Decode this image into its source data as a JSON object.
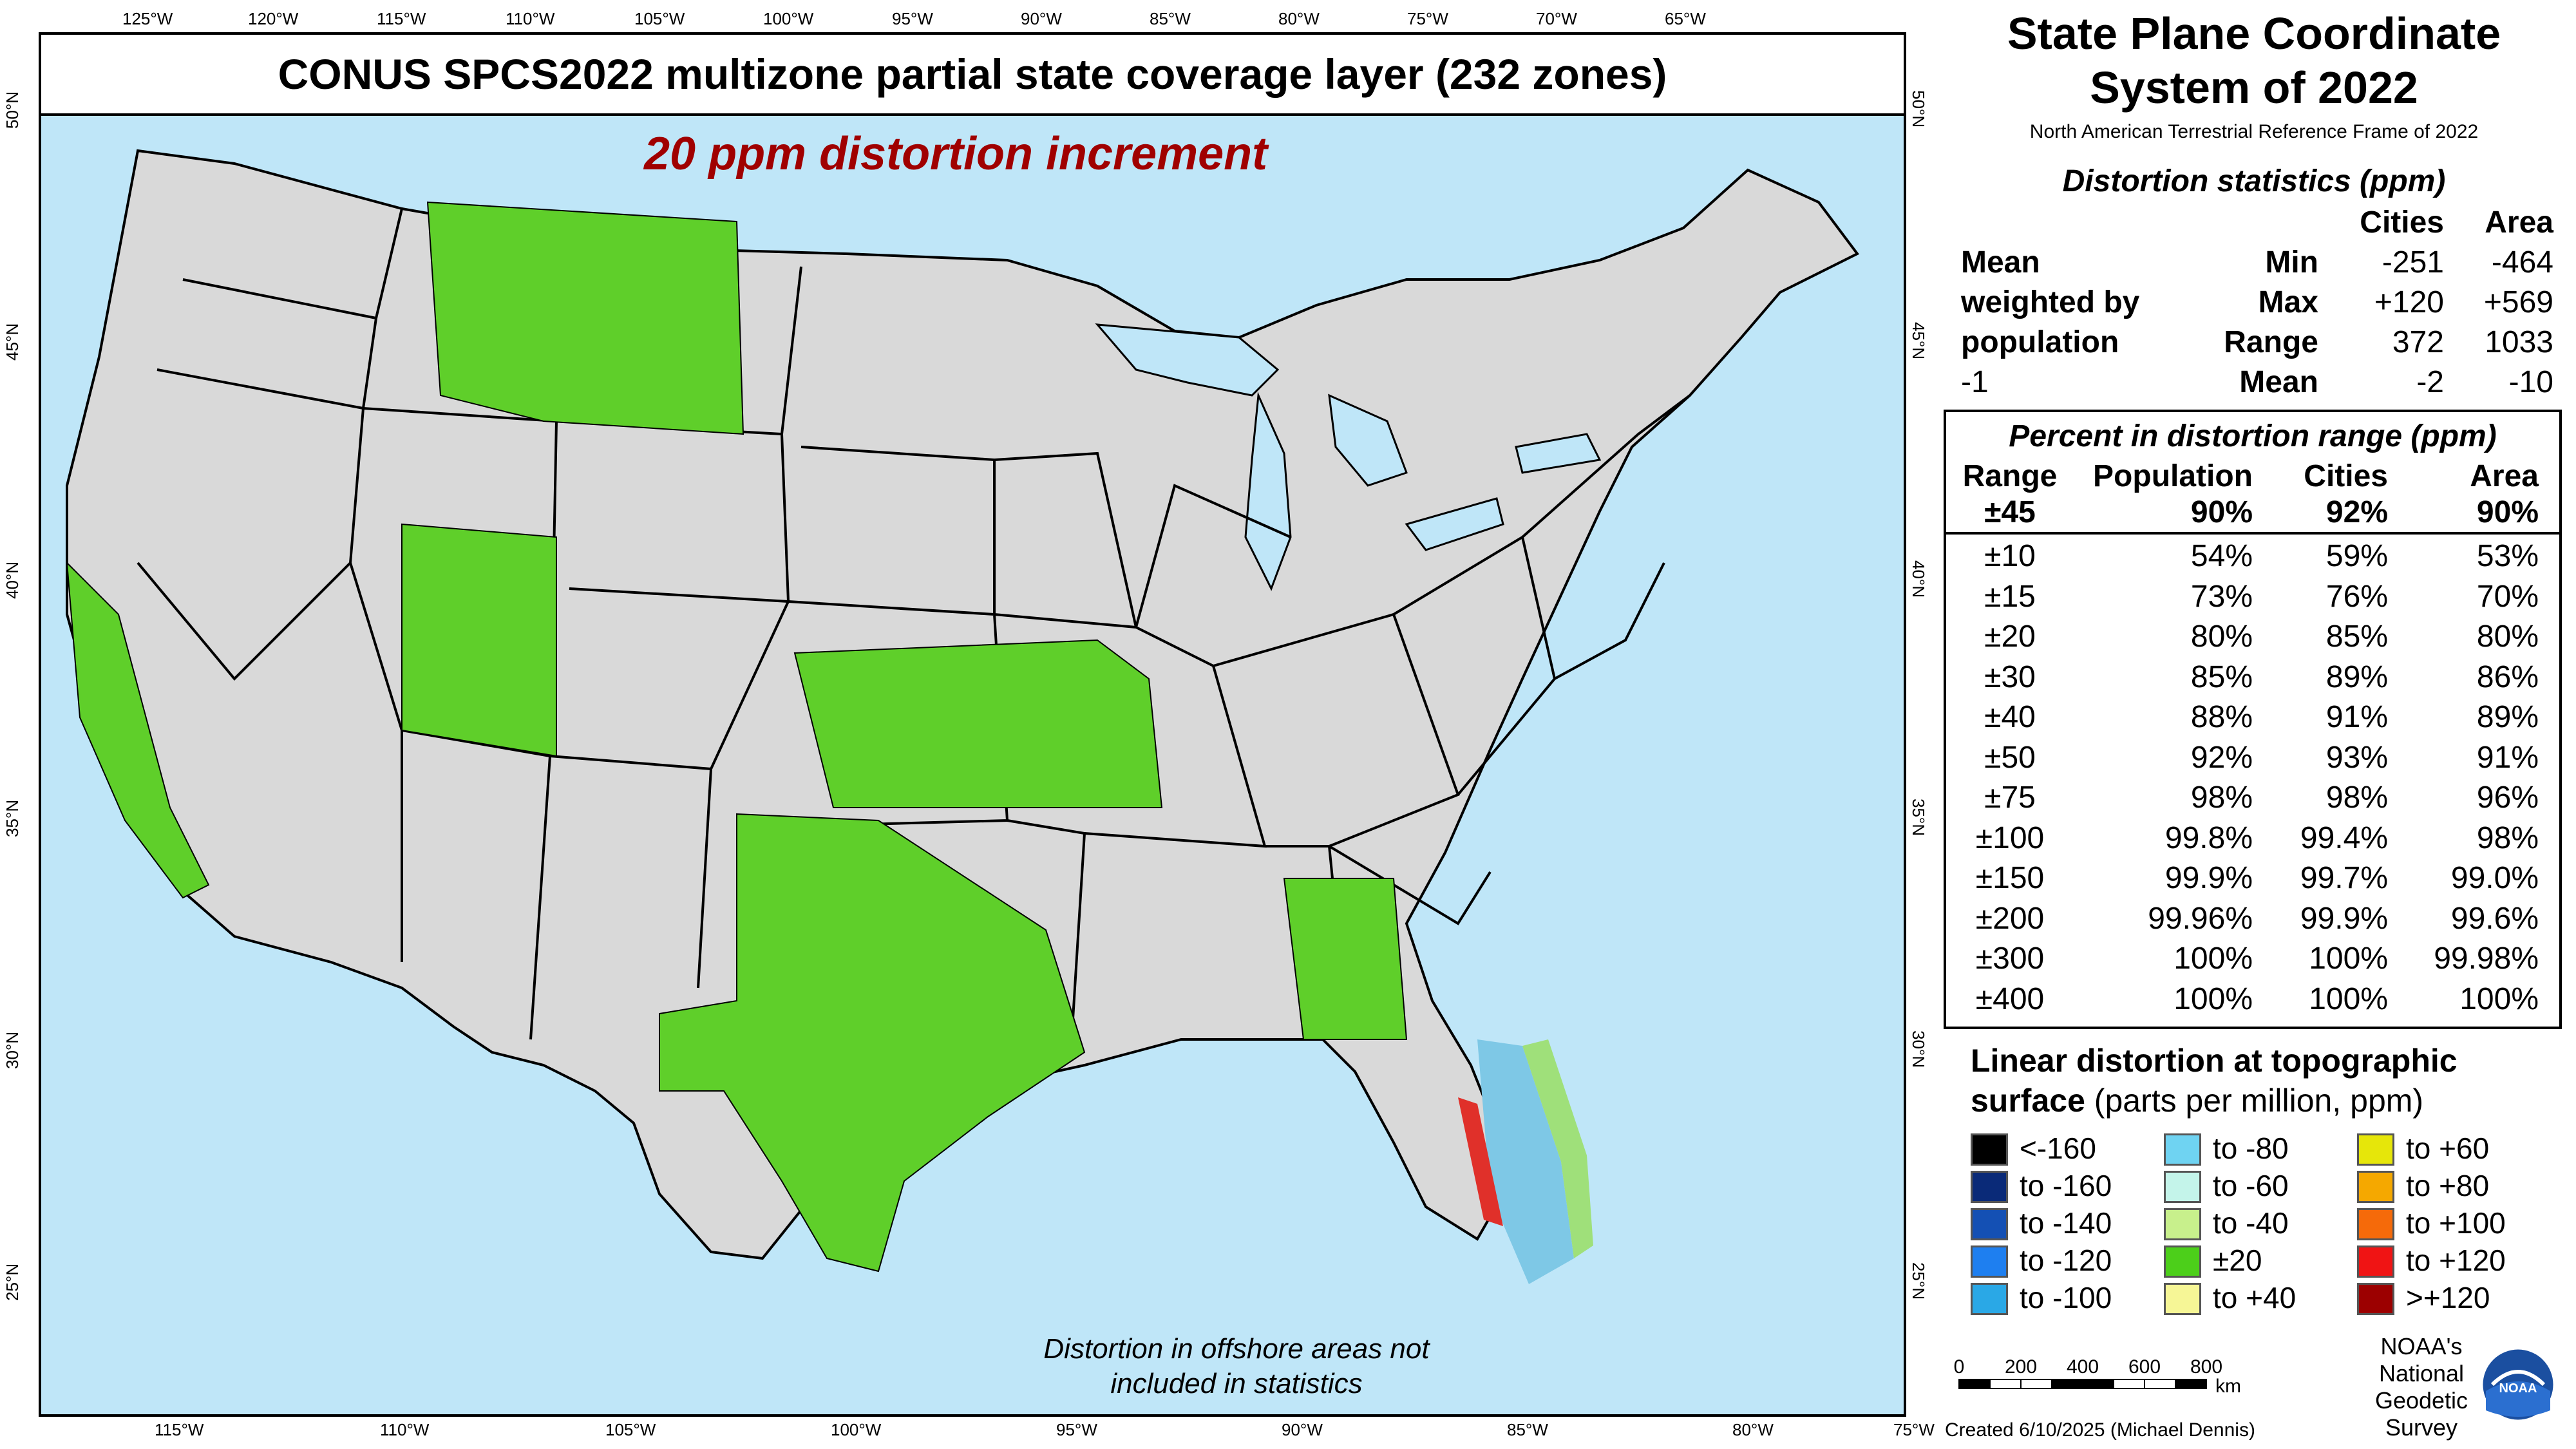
{
  "map": {
    "title": "CONUS SPCS2022 multizone partial state coverage layer (232 zones)",
    "subtitle": "20 ppm distortion increment",
    "offshore_note": "Distortion in offshore areas not included in statistics",
    "top_ticks": [
      "125°W",
      "120°W",
      "115°W",
      "110°W",
      "105°W",
      "100°W",
      "95°W",
      "90°W",
      "85°W",
      "80°W",
      "75°W",
      "70°W",
      "65°W"
    ],
    "bottom_ticks": [
      "115°W",
      "110°W",
      "105°W",
      "100°W",
      "95°W",
      "90°W",
      "85°W",
      "80°W",
      "75°W"
    ],
    "left_ticks": [
      "50°N",
      "45°N",
      "40°N",
      "35°N",
      "30°N",
      "25°N"
    ],
    "right_ticks": [
      "50°N",
      "45°N",
      "40°N",
      "35°N",
      "30°N",
      "25°N"
    ],
    "colors": {
      "ocean": "#bfe6f8",
      "land": "#d9d9d9",
      "coverage": "#5fcf2a",
      "border": "#000000",
      "title_red": "#a00000"
    }
  },
  "panel": {
    "title": "State Plane Coordinate System of 2022",
    "frame": "North American Terrestrial Reference Frame of 2022",
    "stats_heading": "Distortion statistics (ppm)",
    "stats_header": {
      "cities": "Cities",
      "area": "Area"
    },
    "stats_rows": [
      {
        "label": "Mean",
        "key": "Min",
        "cities": "-251",
        "area": "-464"
      },
      {
        "label": "weighted by",
        "key": "Max",
        "cities": "+120",
        "area": "+569"
      },
      {
        "label": "population",
        "key": "Range",
        "cities": "372",
        "area": "1033"
      },
      {
        "label": "-1",
        "key": "Mean",
        "cities": "-2",
        "area": "-10"
      }
    ],
    "pct_heading": "Percent in distortion range (ppm)",
    "pct_header": {
      "range": "Range",
      "population": "Population",
      "cities": "Cities",
      "area": "Area"
    },
    "pct_rows": [
      {
        "range": "±45",
        "population": "90%",
        "cities": "92%",
        "area": "90%"
      },
      {
        "range": "±10",
        "population": "54%",
        "cities": "59%",
        "area": "53%"
      },
      {
        "range": "±15",
        "population": "73%",
        "cities": "76%",
        "area": "70%"
      },
      {
        "range": "±20",
        "population": "80%",
        "cities": "85%",
        "area": "80%"
      },
      {
        "range": "±30",
        "population": "85%",
        "cities": "89%",
        "area": "86%"
      },
      {
        "range": "±40",
        "population": "88%",
        "cities": "91%",
        "area": "89%"
      },
      {
        "range": "±50",
        "population": "92%",
        "cities": "93%",
        "area": "91%"
      },
      {
        "range": "±75",
        "population": "98%",
        "cities": "98%",
        "area": "96%"
      },
      {
        "range": "±100",
        "population": "99.8%",
        "cities": "99.4%",
        "area": "98%"
      },
      {
        "range": "±150",
        "population": "99.9%",
        "cities": "99.7%",
        "area": "99.0%"
      },
      {
        "range": "±200",
        "population": "99.96%",
        "cities": "99.9%",
        "area": "99.6%"
      },
      {
        "range": "±300",
        "population": "100%",
        "cities": "100%",
        "area": "99.98%"
      },
      {
        "range": "±400",
        "population": "100%",
        "cities": "100%",
        "area": "100%"
      }
    ],
    "legend_title": "Linear distortion at topographic",
    "legend_title_line2": "surface",
    "legend_unit": "(parts per million, ppm)",
    "legend": [
      {
        "label": "<-160",
        "color": "#000000"
      },
      {
        "label": "to -160",
        "color": "#0a2a78"
      },
      {
        "label": "to -140",
        "color": "#1450b4"
      },
      {
        "label": "to -120",
        "color": "#1e7ff0"
      },
      {
        "label": "to -100",
        "color": "#2aa8e6"
      },
      {
        "label": "to -80",
        "color": "#6fd3f2"
      },
      {
        "label": "to -60",
        "color": "#c4f4ea"
      },
      {
        "label": "to -40",
        "color": "#c8f08c"
      },
      {
        "label": "±20",
        "color": "#4ccf1a"
      },
      {
        "label": "to +40",
        "color": "#f6f696"
      },
      {
        "label": "to +60",
        "color": "#e6e60a"
      },
      {
        "label": "to +80",
        "color": "#f5a800"
      },
      {
        "label": "to +100",
        "color": "#f56a0a"
      },
      {
        "label": "to +120",
        "color": "#f01414"
      },
      {
        "label": ">+120",
        "color": "#9c0000"
      }
    ],
    "scale": {
      "labels": [
        "0",
        "200",
        "400",
        "600",
        "800"
      ],
      "unit": "km"
    },
    "credit": "Created 6/10/2025 (Michael Dennis)",
    "agency": "NOAA's National Geodetic Survey",
    "logo_text": "NOAA"
  }
}
